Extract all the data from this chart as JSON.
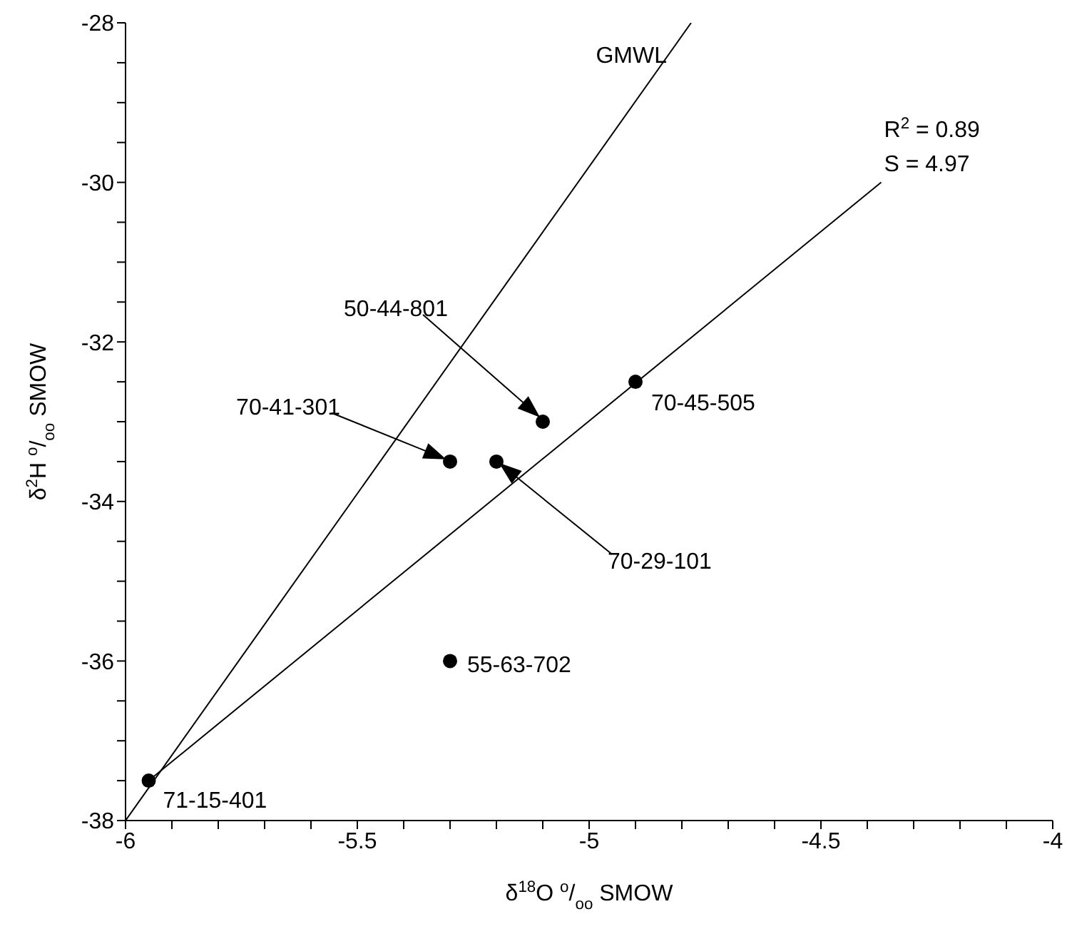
{
  "chart_data": {
    "type": "scatter",
    "xlabel": "δ$^{18}$O $^{o}$/$_{oo}$ SMOW",
    "ylabel": "δ$^{2}$H $^{o}$/$_{oo}$ SMOW",
    "series": [
      {
        "marker": "circle",
        "color": "#000000",
        "x": [
          -5.1,
          -5.3,
          -5.2,
          -4.9,
          -5.3,
          -5.95
        ],
        "values": [
          -33,
          -33.5,
          -33.5,
          -32.5,
          -36,
          -37.5
        ]
      },
      {
        "type": "line",
        "marker": "none",
        "name": "GMWL",
        "color": "#000000",
        "x": [
          -6,
          -4.78
        ],
        "values": [
          -38,
          -28
        ]
      },
      {
        "type": "line",
        "marker": "none",
        "color": "#000000",
        "x": [
          -5.95,
          -4.37
        ],
        "values": [
          -37.5,
          -30
        ]
      }
    ],
    "xlim": [
      -6,
      -4
    ],
    "xticks": [
      -6,
      {
        "value": -5.9,
        "label": null
      },
      {
        "value": -5.8,
        "label": null
      },
      {
        "value": -5.7,
        "label": null
      },
      {
        "value": -5.6,
        "label": null
      },
      -5.5,
      {
        "value": -5.4,
        "label": null
      },
      {
        "value": -5.3,
        "label": null
      },
      {
        "value": -5.2,
        "label": null
      },
      {
        "value": -5.1,
        "label": null
      },
      -5,
      {
        "value": -4.9,
        "label": null
      },
      {
        "value": -4.8,
        "label": null
      },
      {
        "value": -4.7,
        "label": null
      },
      {
        "value": -4.6,
        "label": null
      },
      -4.5,
      {
        "value": -4.4,
        "label": null
      },
      {
        "value": -4.3,
        "label": null
      },
      {
        "value": -4.2,
        "label": null
      },
      {
        "value": -4.1,
        "label": null
      },
      -4
    ],
    "ylim": [
      -38,
      -28
    ],
    "yticks": [
      -38,
      {
        "value": -37.5,
        "label": null
      },
      {
        "value": -37,
        "label": null
      },
      {
        "value": -36.5,
        "label": null
      },
      -36,
      {
        "value": -35.5,
        "label": null
      },
      {
        "value": -35,
        "label": null
      },
      {
        "value": -34.5,
        "label": null
      },
      -34,
      {
        "value": -33.5,
        "label": null
      },
      {
        "value": -33,
        "label": null
      },
      {
        "value": -32.5,
        "label": null
      },
      -32,
      {
        "value": -31.5,
        "label": null
      },
      {
        "value": -31,
        "label": null
      },
      {
        "value": -30.5,
        "label": null
      },
      -30,
      {
        "value": -29.5,
        "label": null
      },
      {
        "value": -29,
        "label": null
      },
      {
        "value": -28.5,
        "label": null
      },
      -28
    ],
    "grid": false,
    "legend": false,
    "line_style": "solid",
    "annotations": [
      {
        "text": "R$^{2}$ = 0.89",
        "x": -4.37,
        "y": -30
      },
      {
        "text": "S = 4.97",
        "x": -4.37,
        "y": -30
      },
      "50-44-801",
      "70-41-301",
      "70-29-101",
      {
        "text": "70-45-505",
        "x": -4.9,
        "y": -32.5
      },
      {
        "text": "55-63-702",
        "x": -5.3,
        "y": -36
      },
      {
        "text": "71-15-401",
        "x": -5.95,
        "y": -37.5
      }
    ]
  }
}
